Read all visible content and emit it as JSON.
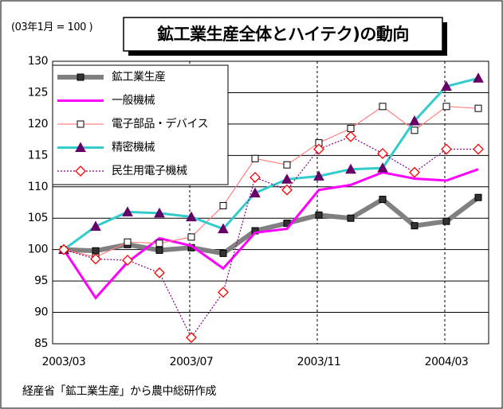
{
  "chart_data": {
    "type": "line",
    "title": "鉱工業生産全体とハイテク)の動向",
    "y_label": "(03年1月 = 100 )",
    "source": "経産省「鉱工業生産」から農中総研作成",
    "categories": [
      "2003/03",
      null,
      null,
      null,
      "2003/07",
      null,
      null,
      null,
      "2003/11",
      null,
      null,
      null,
      "2004/03",
      null
    ],
    "series": [
      {
        "name": "鉱工業生産",
        "color": "#808080",
        "values": [
          100,
          99.8,
          100.8,
          99.9,
          100.3,
          99.4,
          103,
          104.2,
          105.5,
          105,
          108,
          103.8,
          104.5,
          108.3
        ]
      },
      {
        "name": "一般機械",
        "color": "#ff00ff",
        "values": [
          100,
          92.3,
          98,
          101.8,
          100.6,
          97,
          102.7,
          103.3,
          109.5,
          110.3,
          112.3,
          111.3,
          111,
          112.8
        ]
      },
      {
        "name": "電子部品・デバイス",
        "color": "#ff8080",
        "values": [
          100,
          98.8,
          101.2,
          101,
          102,
          107,
          114.5,
          113.5,
          117,
          119.3,
          122.8,
          119,
          122.8,
          122.5
        ]
      },
      {
        "name": "精密機械",
        "color": "#33cccc",
        "values": [
          100,
          103.7,
          106,
          105.8,
          105.2,
          103.3,
          109,
          111.2,
          111.7,
          112.8,
          113,
          120.5,
          126,
          127.3
        ]
      },
      {
        "name": "民生用電子機械",
        "color": "#800080",
        "values": [
          100,
          98.5,
          98.3,
          96.3,
          86,
          93.2,
          111.5,
          109.5,
          116,
          118,
          115.3,
          112.3,
          116,
          116
        ]
      }
    ],
    "ylim": [
      85,
      130
    ],
    "yticks": [
      85,
      90,
      95,
      100,
      105,
      110,
      115,
      120,
      125,
      130
    ],
    "grid": true
  }
}
